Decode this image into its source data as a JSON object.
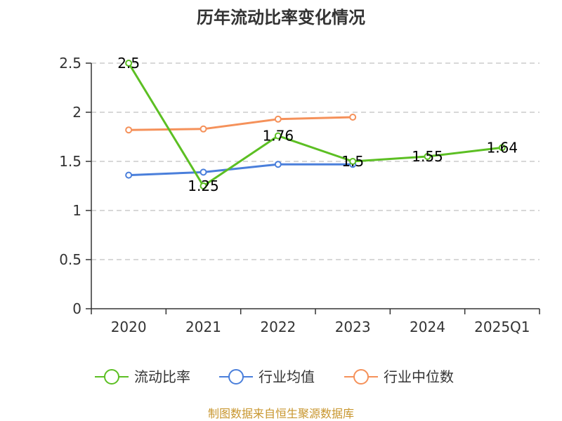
{
  "chart_data": {
    "type": "line",
    "title": "历年流动比率变化情况",
    "categories": [
      "2020",
      "2021",
      "2022",
      "2023",
      "2024",
      "2025Q1"
    ],
    "ylim": [
      0,
      2.5
    ],
    "yticks": [
      "0",
      "0.5",
      "1",
      "1.5",
      "2",
      "2.5"
    ],
    "grid": true,
    "legend_position": "bottom",
    "series": [
      {
        "name": "流动比率",
        "color": "#5cbf23",
        "values": [
          2.5,
          1.25,
          1.76,
          1.5,
          1.55,
          1.64
        ],
        "labels": [
          "2.5",
          "1.25",
          "1.76",
          "1.5",
          "1.55",
          "1.64"
        ],
        "line_width": 3
      },
      {
        "name": "行业均值",
        "color": "#4a7fdb",
        "values": [
          1.36,
          1.39,
          1.47,
          1.47,
          null,
          null
        ],
        "line_width": 3
      },
      {
        "name": "行业中位数",
        "color": "#f5915a",
        "values": [
          1.82,
          1.83,
          1.93,
          1.95,
          null,
          null
        ],
        "line_width": 3
      }
    ]
  },
  "source_note": "制图数据来自恒生聚源数据库"
}
